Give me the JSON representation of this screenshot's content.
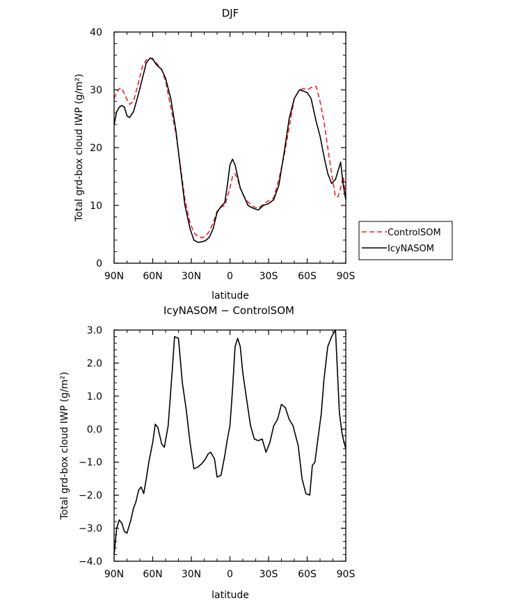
{
  "chart_data": [
    {
      "type": "line",
      "title": "DJF",
      "xlabel": "latitude",
      "ylabel": "Total grd-box cloud IWP (g/m²)",
      "xlim": [
        90,
        -90
      ],
      "ylim": [
        0,
        40
      ],
      "xticks": [
        90,
        60,
        30,
        0,
        -30,
        -60,
        -90
      ],
      "xticklabels": [
        "90N",
        "60N",
        "30N",
        "0",
        "30S",
        "60S",
        "90S"
      ],
      "yticks": [
        0,
        10,
        20,
        30,
        40
      ],
      "yticklabels": [
        "0",
        "10",
        "20",
        "30",
        "40"
      ],
      "legend_position": "right",
      "series": [
        {
          "name": "ControlSOM",
          "color": "#e8202a",
          "dash": "dashed",
          "x": [
            90,
            88,
            86,
            84,
            82,
            80,
            78,
            75,
            72,
            68,
            65,
            62,
            60,
            57,
            53,
            50,
            46,
            42,
            38,
            35,
            31,
            28,
            25,
            22,
            19,
            16,
            13,
            10,
            7,
            4,
            2,
            0,
            -2,
            -4,
            -6,
            -8,
            -11,
            -14,
            -18,
            -22,
            -26,
            -30,
            -34,
            -38,
            -42,
            -46,
            -50,
            -54,
            -57,
            -60,
            -63,
            -67,
            -70,
            -73,
            -76,
            -79,
            -82,
            -84,
            -86,
            -88,
            -90
          ],
          "y": [
            28.5,
            29.5,
            30.2,
            30.3,
            29.3,
            28.3,
            27.5,
            28.0,
            30.5,
            34.0,
            35.2,
            35.5,
            35.4,
            34.6,
            33.5,
            31.5,
            27.0,
            22.5,
            16.0,
            11.0,
            7.0,
            5.3,
            4.6,
            4.4,
            4.7,
            5.5,
            7.0,
            9.0,
            9.7,
            10.0,
            11.5,
            13.0,
            15.0,
            15.5,
            14.5,
            13.0,
            11.5,
            10.6,
            9.8,
            9.5,
            10.2,
            10.8,
            11.3,
            14.5,
            18.5,
            23.5,
            28.5,
            30.0,
            30.2,
            30.0,
            30.4,
            30.6,
            28.0,
            24.5,
            20.0,
            15.5,
            11.5,
            11.5,
            13.0,
            15.0,
            11.5
          ]
        },
        {
          "name": "IcyNASOM",
          "color": "#000000",
          "dash": "solid",
          "x": [
            90,
            88,
            86,
            84,
            82,
            80,
            78,
            75,
            72,
            68,
            65,
            62,
            60,
            57,
            53,
            50,
            46,
            42,
            38,
            35,
            31,
            28,
            25,
            22,
            19,
            16,
            13,
            10,
            7,
            4,
            2,
            0,
            -2,
            -4,
            -6,
            -8,
            -11,
            -14,
            -18,
            -22,
            -26,
            -30,
            -34,
            -38,
            -42,
            -46,
            -50,
            -54,
            -57,
            -60,
            -63,
            -67,
            -70,
            -73,
            -76,
            -79,
            -82,
            -84,
            -86,
            -88,
            -90
          ],
          "y": [
            24.0,
            26.2,
            27.0,
            27.3,
            27.0,
            25.5,
            25.2,
            26.2,
            28.5,
            32.0,
            34.7,
            35.5,
            35.3,
            34.3,
            33.5,
            32.0,
            28.5,
            23.0,
            15.5,
            10.0,
            6.0,
            4.0,
            3.6,
            3.7,
            3.9,
            4.5,
            6.0,
            8.8,
            9.8,
            10.5,
            13.5,
            17.0,
            18.0,
            17.0,
            15.0,
            13.0,
            11.5,
            10.0,
            9.5,
            9.2,
            10.0,
            10.3,
            11.0,
            13.5,
            19.0,
            25.0,
            28.5,
            30.0,
            29.8,
            29.5,
            28.5,
            24.5,
            22.0,
            18.5,
            15.5,
            13.8,
            14.5,
            16.0,
            17.5,
            13.5,
            11.0
          ]
        }
      ]
    },
    {
      "type": "line",
      "title": "IcyNASOM − ControlSOM",
      "xlabel": "latitude",
      "ylabel": "Total grd-box cloud IWP (g/m²)",
      "xlim": [
        90,
        -90
      ],
      "ylim": [
        -4.0,
        3.0
      ],
      "xticks": [
        90,
        60,
        30,
        0,
        -30,
        -60,
        -90
      ],
      "xticklabels": [
        "90N",
        "60N",
        "30N",
        "0",
        "30S",
        "60S",
        "90S"
      ],
      "yticks": [
        -4.0,
        -3.0,
        -2.0,
        -1.0,
        0.0,
        1.0,
        2.0,
        3.0
      ],
      "yticklabels": [
        "−4.0",
        "−3.0",
        "−2.0",
        "−1.0",
        "0.0",
        "1.0",
        "2.0",
        "3.0"
      ],
      "series": [
        {
          "color": "#000000",
          "dash": "solid",
          "x": [
            90,
            88,
            86,
            84,
            82,
            80,
            77,
            75,
            73,
            71,
            69,
            67,
            65,
            63,
            60,
            58,
            56,
            53,
            51,
            48,
            45,
            43,
            40,
            37,
            34,
            31,
            28,
            25,
            22,
            19,
            17,
            15,
            12,
            10,
            7,
            4,
            2,
            0,
            -2,
            -4,
            -6,
            -8,
            -10,
            -13,
            -16,
            -19,
            -22,
            -25,
            -28,
            -31,
            -34,
            -37,
            -40,
            -43,
            -46,
            -49,
            -51,
            -53,
            -56,
            -59,
            -62,
            -64,
            -66,
            -68,
            -71,
            -73,
            -76,
            -79,
            -82,
            -85,
            -87,
            -88,
            -90
          ],
          "y": [
            -3.8,
            -3.0,
            -2.75,
            -2.85,
            -3.1,
            -3.15,
            -2.75,
            -2.4,
            -2.2,
            -1.85,
            -1.75,
            -1.95,
            -1.5,
            -1.0,
            -0.4,
            0.15,
            0.05,
            -0.45,
            -0.55,
            0.1,
            1.7,
            2.8,
            2.75,
            1.4,
            0.6,
            -0.4,
            -1.2,
            -1.15,
            -1.05,
            -0.9,
            -0.75,
            -0.7,
            -0.9,
            -1.45,
            -1.4,
            -0.8,
            -0.3,
            0.1,
            1.2,
            2.5,
            2.75,
            2.5,
            1.7,
            0.9,
            0.1,
            -0.3,
            -0.35,
            -0.3,
            -0.7,
            -0.4,
            0.1,
            0.3,
            0.75,
            0.65,
            0.3,
            0.1,
            -0.2,
            -0.5,
            -1.5,
            -1.95,
            -2.0,
            -1.1,
            -1.0,
            -0.4,
            0.5,
            1.5,
            2.5,
            2.8,
            3.0,
            0.5,
            -0.1,
            -0.3,
            -0.6
          ]
        }
      ]
    }
  ]
}
